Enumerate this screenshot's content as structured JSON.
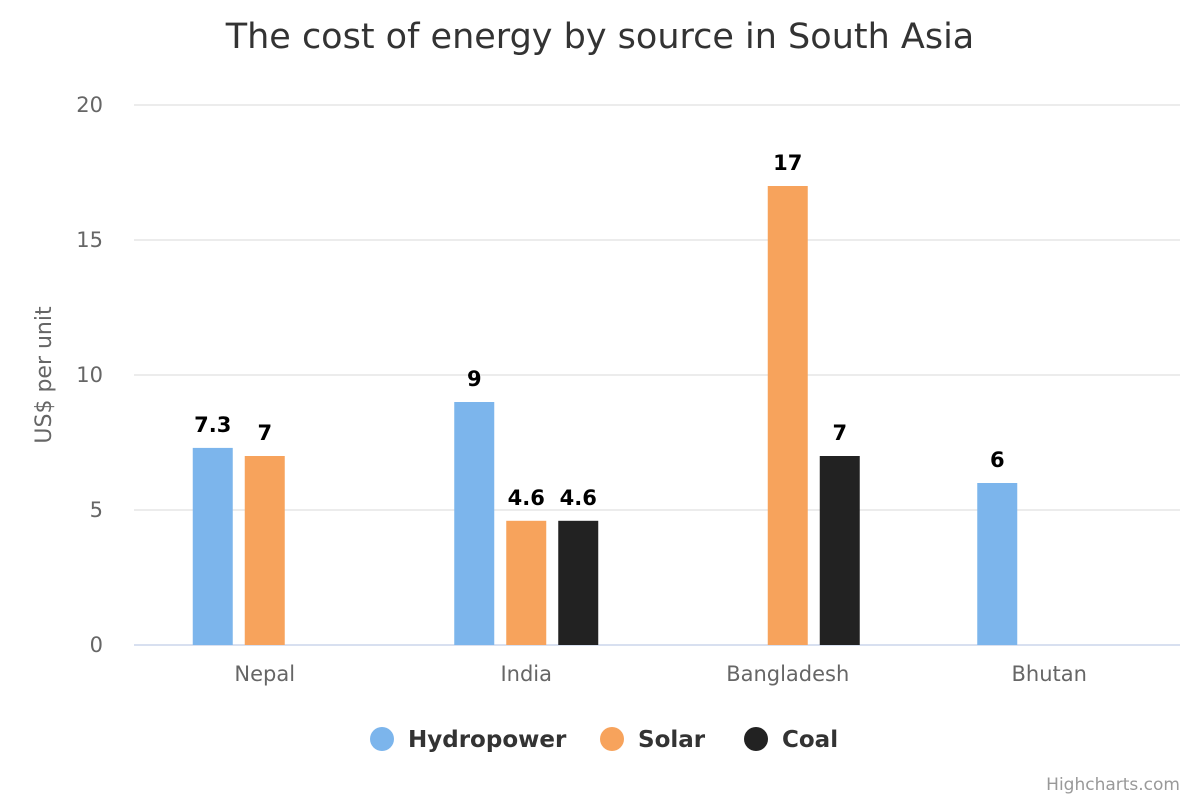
{
  "chart_data": {
    "type": "bar",
    "title": "The cost of energy by source in South Asia",
    "ylabel": "US$ per unit",
    "xlabel": "",
    "categories": [
      "Nepal",
      "India",
      "Bangladesh",
      "Bhutan"
    ],
    "ylim": [
      0,
      20
    ],
    "yticks": [
      0,
      5,
      10,
      15,
      20
    ],
    "grid": true,
    "legend_position": "bottom",
    "series": [
      {
        "name": "Hydropower",
        "color": "#7cb5ec",
        "values": [
          7.3,
          9,
          null,
          6
        ]
      },
      {
        "name": "Solar",
        "color": "#f7a35c",
        "values": [
          7,
          4.6,
          17,
          null
        ]
      },
      {
        "name": "Coal",
        "color": "#222222",
        "values": [
          null,
          4.6,
          7,
          null
        ]
      }
    ],
    "credits": "Highcharts.com"
  }
}
